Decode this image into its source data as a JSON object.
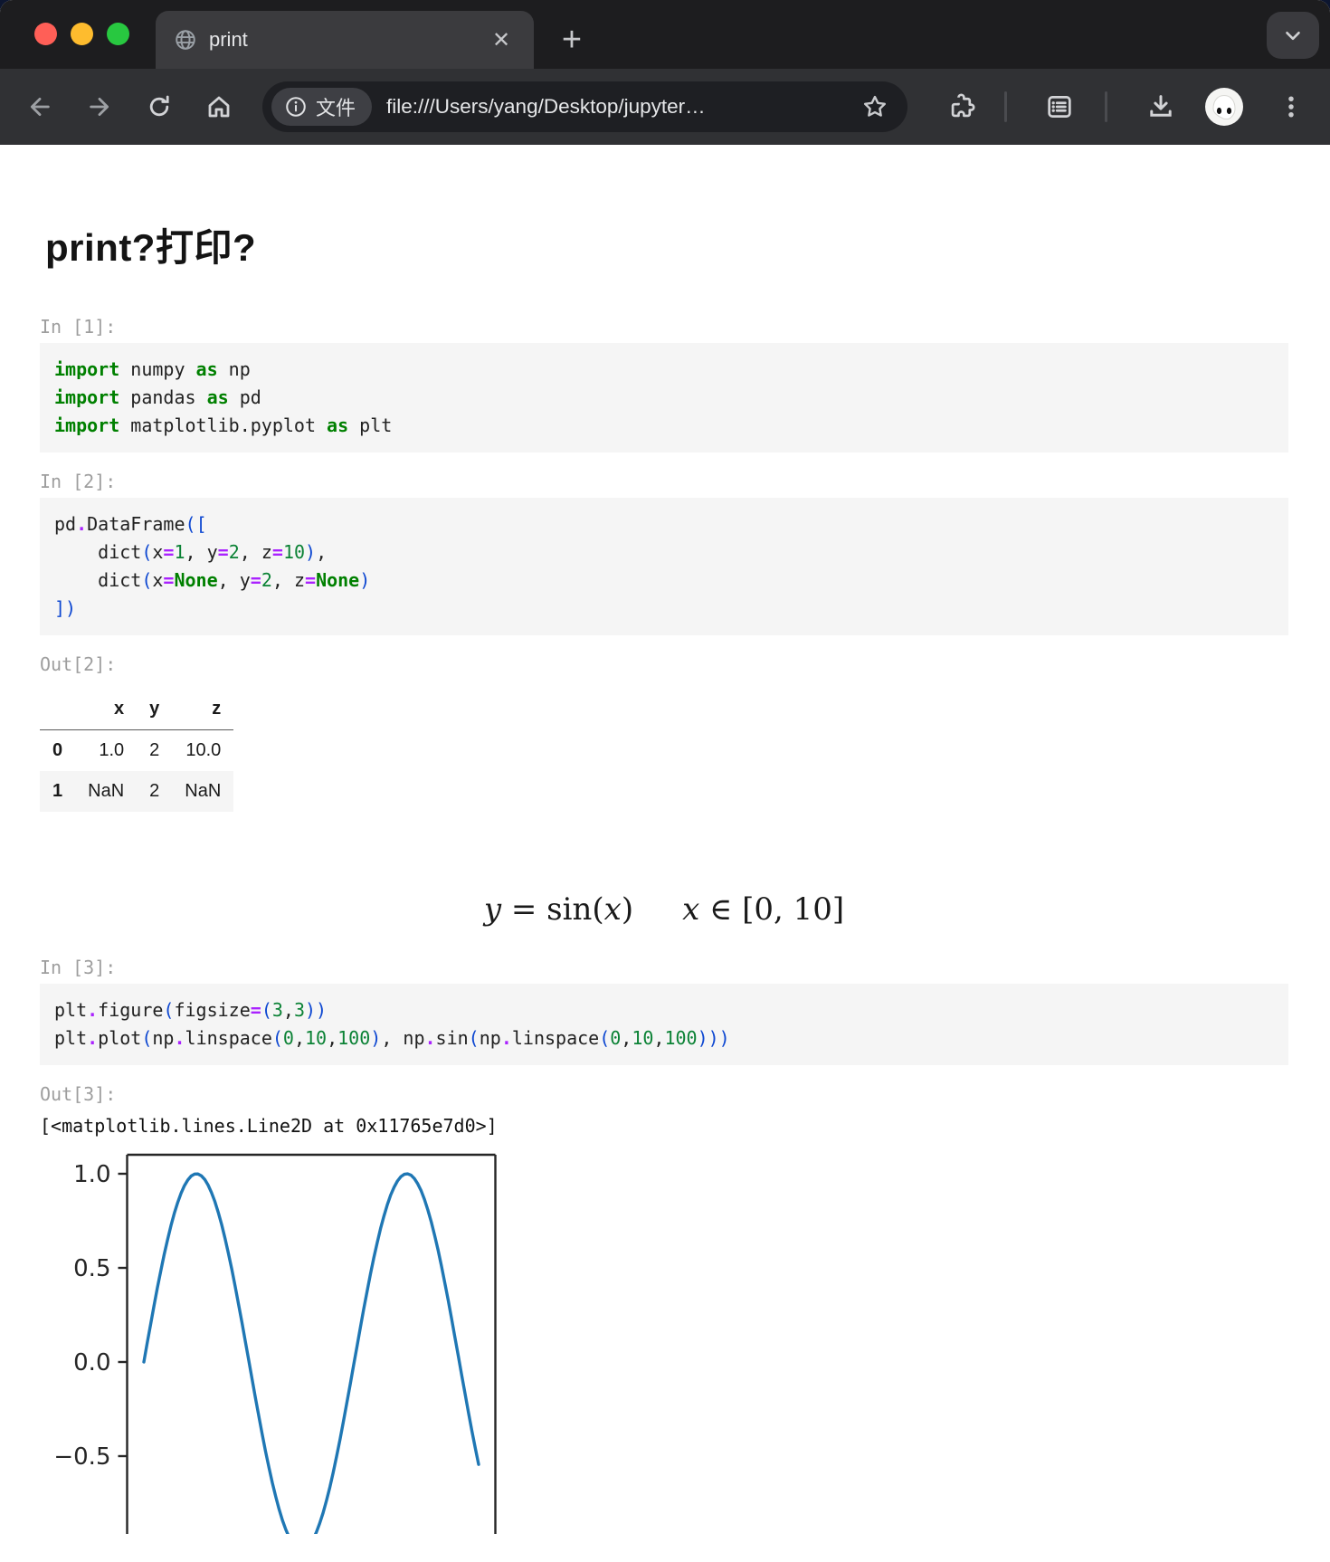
{
  "browser": {
    "tab_title": "print",
    "close_tab_glyph": "✕",
    "new_tab_glyph": "+",
    "url_chip_label": "文件",
    "url": "file:///Users/yang/Desktop/jupyter…"
  },
  "notebook": {
    "title": "print?打印?",
    "prompts": {
      "in1": "In [1]:",
      "in2": "In [2]:",
      "out2": "Out[2]:",
      "in3": "In [3]:",
      "out3": "Out[3]:"
    },
    "code_blocks": [
      {
        "lines": [
          [
            [
              "import",
              "kw"
            ],
            [
              " numpy ",
              "pl"
            ],
            [
              "as",
              "kw"
            ],
            [
              " np",
              "pl"
            ]
          ],
          [
            [
              "import",
              "kw"
            ],
            [
              " pandas ",
              "pl"
            ],
            [
              "as",
              "kw"
            ],
            [
              " pd",
              "pl"
            ]
          ],
          [
            [
              "import",
              "kw"
            ],
            [
              " matplotlib.pyplot ",
              "pl"
            ],
            [
              "as",
              "kw"
            ],
            [
              " plt",
              "pl"
            ]
          ]
        ]
      },
      {
        "lines": [
          [
            [
              "pd",
              "pl"
            ],
            [
              ".",
              "op"
            ],
            [
              "DataFrame",
              "pl"
            ],
            [
              "(",
              "br"
            ],
            [
              "[",
              "br"
            ]
          ],
          [
            [
              "    dict",
              "pl"
            ],
            [
              "(",
              "br"
            ],
            [
              "x",
              "pl"
            ],
            [
              "=",
              "op"
            ],
            [
              "1",
              "num"
            ],
            [
              ", ",
              "pl"
            ],
            [
              "y",
              "pl"
            ],
            [
              "=",
              "op"
            ],
            [
              "2",
              "num"
            ],
            [
              ", ",
              "pl"
            ],
            [
              "z",
              "pl"
            ],
            [
              "=",
              "op"
            ],
            [
              "10",
              "num"
            ],
            [
              ")",
              "br"
            ],
            [
              ",",
              "pl"
            ]
          ],
          [
            [
              "    dict",
              "pl"
            ],
            [
              "(",
              "br"
            ],
            [
              "x",
              "pl"
            ],
            [
              "=",
              "op"
            ],
            [
              "None",
              "kw"
            ],
            [
              ", ",
              "pl"
            ],
            [
              "y",
              "pl"
            ],
            [
              "=",
              "op"
            ],
            [
              "2",
              "num"
            ],
            [
              ", ",
              "pl"
            ],
            [
              "z",
              "pl"
            ],
            [
              "=",
              "op"
            ],
            [
              "None",
              "kw"
            ],
            [
              ")",
              "br"
            ]
          ],
          [
            [
              "])",
              "br"
            ]
          ]
        ]
      },
      {
        "lines": [
          [
            [
              "plt",
              "pl"
            ],
            [
              ".",
              "op"
            ],
            [
              "figure",
              "pl"
            ],
            [
              "(",
              "br"
            ],
            [
              "figsize",
              "pl"
            ],
            [
              "=",
              "op"
            ],
            [
              "(",
              "br"
            ],
            [
              "3",
              "num"
            ],
            [
              ",",
              "pl"
            ],
            [
              "3",
              "num"
            ],
            [
              "))",
              "br"
            ]
          ],
          [
            [
              "plt",
              "pl"
            ],
            [
              ".",
              "op"
            ],
            [
              "plot",
              "pl"
            ],
            [
              "(",
              "br"
            ],
            [
              "np",
              "pl"
            ],
            [
              ".",
              "op"
            ],
            [
              "linspace",
              "pl"
            ],
            [
              "(",
              "br"
            ],
            [
              "0",
              "num"
            ],
            [
              ",",
              "pl"
            ],
            [
              "10",
              "num"
            ],
            [
              ",",
              "pl"
            ],
            [
              "100",
              "num"
            ],
            [
              ")",
              "br"
            ],
            [
              ", ",
              "pl"
            ],
            [
              "np",
              "pl"
            ],
            [
              ".",
              "op"
            ],
            [
              "sin",
              "pl"
            ],
            [
              "(",
              "br"
            ],
            [
              "np",
              "pl"
            ],
            [
              ".",
              "op"
            ],
            [
              "linspace",
              "pl"
            ],
            [
              "(",
              "br"
            ],
            [
              "0",
              "num"
            ],
            [
              ",",
              "pl"
            ],
            [
              "10",
              "num"
            ],
            [
              ",",
              "pl"
            ],
            [
              "100",
              "num"
            ],
            [
              ")))",
              "br"
            ]
          ]
        ]
      }
    ],
    "dataframe": {
      "columns": [
        "x",
        "y",
        "z"
      ],
      "rows": [
        {
          "index": "0",
          "values": [
            "1.0",
            "2",
            "10.0"
          ]
        },
        {
          "index": "1",
          "values": [
            "NaN",
            "2",
            "NaN"
          ]
        }
      ]
    },
    "formula_parts": [
      {
        "t": "y",
        "c": "it"
      },
      {
        "t": " = sin(",
        "c": "rm"
      },
      {
        "t": "x",
        "c": "it"
      },
      {
        "t": ")",
        "c": "rm"
      },
      {
        "t": "     ",
        "c": "rm"
      },
      {
        "t": "x",
        "c": "it"
      },
      {
        "t": " ∈ [0, 10]",
        "c": "rm"
      }
    ],
    "out3_text": "[<matplotlib.lines.Line2D at 0x11765e7d0>]",
    "chart_data": {
      "type": "line",
      "title": "",
      "xlabel": "",
      "ylabel": "",
      "series": [
        {
          "name": "sin(x)",
          "x_start": 0,
          "x_end": 10,
          "n_points": 100
        }
      ],
      "xlim": [
        -0.5,
        10.5
      ],
      "ylim": [
        -1.1,
        1.1
      ],
      "yticks": [
        1.0,
        0.5,
        0.0,
        -0.5
      ],
      "ytick_labels": [
        "1.0",
        "0.5",
        "0.0",
        "−0.5"
      ],
      "grid": false,
      "legend": false,
      "line_color": "#1f77b4",
      "note": "figure clipped at bottom of viewport"
    }
  }
}
